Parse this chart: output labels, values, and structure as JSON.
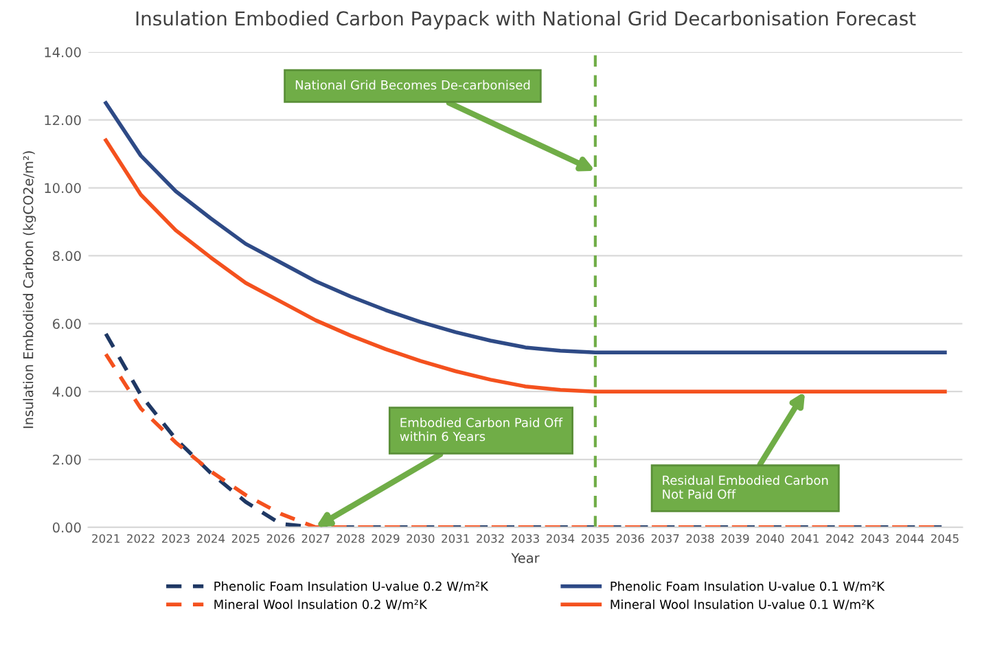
{
  "chart_data": {
    "type": "line",
    "title": "Insulation Embodied Carbon Paypack with National Grid Decarbonisation Forecast",
    "xlabel": "Year",
    "ylabel": "Insulation Embodied Carbon (kgCO2e/m²)",
    "categories": [
      "2021",
      "2022",
      "2023",
      "2024",
      "2025",
      "2026",
      "2027",
      "2028",
      "2029",
      "2030",
      "2031",
      "2032",
      "2033",
      "2034",
      "2035",
      "2036",
      "2037",
      "2038",
      "2039",
      "2040",
      "2041",
      "2042",
      "2043",
      "2044",
      "2045"
    ],
    "series": [
      {
        "name": "Phenolic Foam Insulation U-value 0.2 W/m²K",
        "color": "#1f3864",
        "line_style": "dashed",
        "values": [
          5.7,
          3.9,
          2.6,
          1.6,
          0.75,
          0.1,
          0,
          0,
          0,
          0,
          0,
          0,
          0,
          0,
          0,
          0,
          0,
          0,
          0,
          0,
          0,
          0,
          0,
          0,
          0
        ]
      },
      {
        "name": "Mineral Wool Insulation 0.2 W/m²K",
        "color": "#f4511e",
        "line_style": "dashed",
        "values": [
          5.1,
          3.5,
          2.5,
          1.65,
          0.95,
          0.4,
          0,
          0,
          0,
          0,
          0,
          0,
          0,
          0,
          0,
          0,
          0,
          0,
          0,
          0,
          0,
          0,
          0,
          0,
          0
        ]
      },
      {
        "name": "Phenolic Foam Insulation U-value 0.1 W/m²K",
        "color": "#2e4a86",
        "line_style": "solid",
        "values": [
          12.5,
          10.95,
          9.9,
          9.1,
          8.35,
          7.8,
          7.25,
          6.8,
          6.4,
          6.05,
          5.75,
          5.5,
          5.3,
          5.2,
          5.15,
          5.15,
          5.15,
          5.15,
          5.15,
          5.15,
          5.15,
          5.15,
          5.15,
          5.15,
          5.15
        ]
      },
      {
        "name": "Mineral Wool Insulation U-value 0.1 W/m²K",
        "color": "#f4511e",
        "line_style": "solid",
        "values": [
          11.4,
          9.8,
          8.75,
          7.95,
          7.2,
          6.65,
          6.1,
          5.65,
          5.25,
          4.9,
          4.6,
          4.35,
          4.15,
          4.05,
          4.0,
          4.0,
          4.0,
          4.0,
          4.0,
          4.0,
          4.0,
          4.0,
          4.0,
          4.0,
          4.0
        ]
      }
    ],
    "ylim": [
      0,
      14
    ],
    "yticks": [
      {
        "value": 0,
        "label": "0.00"
      },
      {
        "value": 2,
        "label": "2.00"
      },
      {
        "value": 4,
        "label": "4.00"
      },
      {
        "value": 6,
        "label": "6.00"
      },
      {
        "value": 8,
        "label": "8.00"
      },
      {
        "value": 10,
        "label": "10.00"
      },
      {
        "value": 12,
        "label": "12.00"
      },
      {
        "value": 14,
        "label": "14.00"
      }
    ],
    "grid": "y",
    "legend": "bottom",
    "marker": "none",
    "ref_lines": [
      {
        "axis": "x",
        "value": "2035",
        "color": "#70ad47",
        "line_style": "dashed"
      }
    ],
    "annotations": [
      {
        "text": "National Grid Becomes De-carbonised",
        "x": "2035",
        "y": 10.5
      },
      {
        "text": "Embodied Carbon Paid Off\nwithin 6 Years",
        "x": "2027",
        "y": 0
      },
      {
        "text": "Residual Embodied Carbon\nNot Paid Off",
        "x": "2041",
        "y": 4.0
      }
    ]
  }
}
